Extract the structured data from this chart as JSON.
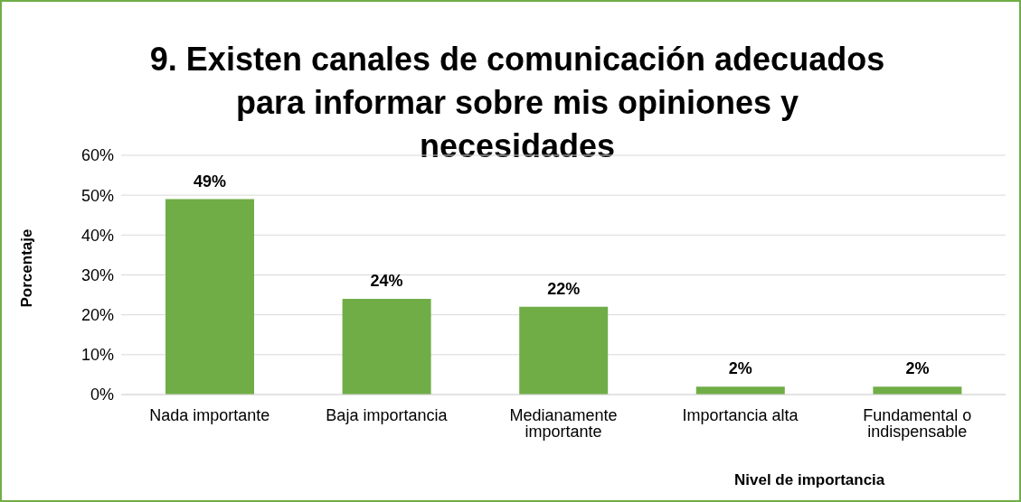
{
  "chart_data": {
    "type": "bar",
    "title": "9. Existen canales de comunicación adecuados para informar sobre mis opiniones y necesidades",
    "xlabel": "Nivel de importancia",
    "ylabel": "Porcentaje",
    "categories": [
      "Nada importante",
      "Baja importancia",
      "Medianamente importante",
      "Importancia alta",
      "Fundamental o indispensable"
    ],
    "values": [
      49,
      24,
      22,
      2,
      2
    ],
    "value_labels": [
      "49%",
      "24%",
      "22%",
      "2%",
      "2%"
    ],
    "color": "#70ad47",
    "ylim": [
      0,
      60
    ],
    "yticks": [
      {
        "value": 0,
        "label": "0%"
      },
      {
        "value": 10,
        "label": "10%"
      },
      {
        "value": 20,
        "label": "20%"
      },
      {
        "value": 30,
        "label": "30%"
      },
      {
        "value": 40,
        "label": "40%"
      },
      {
        "value": 50,
        "label": "50%"
      },
      {
        "value": 60,
        "label": "60%"
      }
    ],
    "grid": "y"
  }
}
